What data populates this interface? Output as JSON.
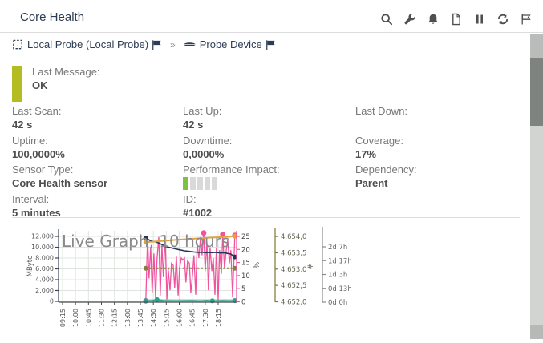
{
  "header": {
    "title": "Core Health",
    "icons": [
      "search-icon",
      "wrench-icon",
      "bell-icon",
      "document-icon",
      "pause-icon",
      "refresh-icon",
      "flag-icon"
    ]
  },
  "breadcrumb": {
    "separator": "»",
    "items": [
      {
        "icon": "probe-icon",
        "label": "Local Probe (Local Probe)",
        "flag": true
      },
      {
        "icon": "device-icon",
        "label": "Probe Device",
        "flag": true
      }
    ]
  },
  "status": {
    "label": "Last Message:",
    "value": "OK",
    "color": "#b3bc21"
  },
  "info_grid": [
    {
      "label": "Last Scan:",
      "value": "42 s"
    },
    {
      "label": "Last Up:",
      "value": "42 s"
    },
    {
      "label": "Last Down:",
      "value": ""
    },
    {
      "label": "Uptime:",
      "value": "100,0000%"
    },
    {
      "label": "Downtime:",
      "value": "0,0000%"
    },
    {
      "label": "Coverage:",
      "value": "17%"
    },
    {
      "label": "Sensor Type:",
      "value": "Core Health sensor"
    },
    {
      "label": "Performance Impact:",
      "value": "",
      "widget": "impact-bars",
      "impact_level": 1,
      "impact_total": 5
    },
    {
      "label": "Dependency:",
      "value": "Parent"
    },
    {
      "label": "Interval:",
      "value": "5 minutes"
    },
    {
      "label": "ID:",
      "value": "#1002"
    }
  ],
  "chart_data": {
    "type": "line",
    "title": "Live Graph, 10 hours",
    "x_ticks": [
      "09:15",
      "10:00",
      "10:45",
      "11:30",
      "12:15",
      "13:00",
      "13:45",
      "14:30",
      "15:15",
      "16:00",
      "16:45",
      "17:30",
      "18:15"
    ],
    "axes": [
      {
        "id": "mbyte",
        "label": "MByte",
        "side": "left",
        "color": "#3c4454",
        "ticks": [
          "0",
          "2.000",
          "4.000",
          "6.000",
          "8.000",
          "10.000",
          "12.000"
        ],
        "range": [
          0,
          12000
        ]
      },
      {
        "id": "pct",
        "label": "%",
        "side": "right1",
        "color": "#f0549e",
        "ticks": [
          "0",
          "5",
          "10",
          "15",
          "20",
          "25"
        ],
        "range": [
          0,
          25
        ]
      },
      {
        "id": "hash",
        "label": "#",
        "side": "right2",
        "color": "#7b7a33",
        "ticks": [
          "4.652,0",
          "4.652,5",
          "4.653,0",
          "4.653,5",
          "4.654,0"
        ],
        "range": [
          4652.0,
          4654.0
        ]
      },
      {
        "id": "age",
        "label": "",
        "side": "right3",
        "color": "#8a8a8a",
        "ticks": [
          "0d 0h",
          "0d 13h",
          "1d 3h",
          "1d 17h",
          "2d 7h"
        ]
      }
    ],
    "grid": true,
    "time_window_minutes": [
      0,
      603
    ],
    "series": [
      {
        "name": "band-minmax",
        "color": "rgba(47,158,141,0.28)",
        "width": 4,
        "style": "solid",
        "points": [
          [
            289,
            0.6
          ],
          [
            598,
            0.6
          ]
        ],
        "dots": []
      },
      {
        "name": "health-pct",
        "color": "#f0549e",
        "width": 1.3,
        "style": "solid",
        "points": [
          [
            289,
            0.5
          ],
          [
            295,
            25.3
          ],
          [
            300,
            9
          ],
          [
            306,
            21
          ],
          [
            311,
            3.5
          ],
          [
            317,
            18.5
          ],
          [
            323,
            1.2
          ],
          [
            328,
            16.5
          ],
          [
            334,
            24.8
          ],
          [
            339,
            2.5
          ],
          [
            345,
            21.5
          ],
          [
            350,
            9.5
          ],
          [
            356,
            25.4
          ],
          [
            362,
            1
          ],
          [
            367,
            12.5
          ],
          [
            373,
            4.5
          ],
          [
            378,
            14.8
          ],
          [
            384,
            14
          ],
          [
            389,
            5.5
          ],
          [
            395,
            17.5
          ],
          [
            401,
            2.5
          ],
          [
            406,
            12.8
          ],
          [
            412,
            16.8
          ],
          [
            417,
            16
          ],
          [
            423,
            16.8
          ],
          [
            428,
            7.5
          ],
          [
            434,
            15.8
          ],
          [
            440,
            14.8
          ],
          [
            445,
            3.5
          ],
          [
            451,
            10.2
          ],
          [
            456,
            17.8
          ],
          [
            462,
            2.8
          ],
          [
            467,
            22.5
          ],
          [
            473,
            16.8
          ],
          [
            479,
            24.8
          ],
          [
            484,
            17.8
          ],
          [
            490,
            26.3
          ],
          [
            495,
            11.8
          ],
          [
            501,
            22.8
          ],
          [
            506,
            4.5
          ],
          [
            512,
            20.8
          ],
          [
            518,
            11.8
          ],
          [
            523,
            16.8
          ],
          [
            529,
            2.8
          ],
          [
            534,
            20.8
          ],
          [
            540,
            0.8
          ],
          [
            545,
            19.8
          ],
          [
            551,
            10.8
          ],
          [
            556,
            25.8
          ],
          [
            562,
            12.8
          ],
          [
            568,
            19.8
          ],
          [
            573,
            23.8
          ],
          [
            579,
            14.8
          ],
          [
            584,
            19.8
          ],
          [
            590,
            1.8
          ],
          [
            598,
            25.4
          ]
        ],
        "dots": [
          [
            289,
            0.5
          ],
          [
            490,
            26.3
          ],
          [
            556,
            25.8
          ],
          [
            598,
            25.4
          ]
        ]
      },
      {
        "name": "memory-mbyte",
        "color": "#233457",
        "width": 1.6,
        "style": "solid",
        "points": [
          [
            289,
            24.4
          ],
          [
            306,
            23.3
          ],
          [
            323,
            22.9
          ],
          [
            334,
            22.5
          ],
          [
            345,
            21.9
          ],
          [
            356,
            21.2
          ],
          [
            367,
            20.9
          ],
          [
            378,
            20.6
          ],
          [
            389,
            20.3
          ],
          [
            406,
            19.9
          ],
          [
            423,
            19.5
          ],
          [
            440,
            19.3
          ],
          [
            456,
            19.1
          ],
          [
            473,
            18.9
          ],
          [
            484,
            19.0
          ],
          [
            495,
            18.8
          ],
          [
            506,
            18.9
          ],
          [
            518,
            18.8
          ],
          [
            529,
            18.9
          ],
          [
            540,
            18.8
          ],
          [
            551,
            18.7
          ],
          [
            562,
            18.8
          ],
          [
            573,
            18.5
          ],
          [
            584,
            18.3
          ],
          [
            592,
            17.6
          ],
          [
            598,
            17.2
          ]
        ],
        "dots": [
          [
            289,
            24.4
          ],
          [
            598,
            17.2
          ]
        ]
      },
      {
        "name": "age-days",
        "color": "#e2a33f",
        "width": 2,
        "style": "solid",
        "points": [
          [
            289,
            22.8
          ],
          [
            340,
            23.2
          ],
          [
            395,
            23.7
          ],
          [
            450,
            24.1
          ],
          [
            506,
            24.5
          ],
          [
            562,
            24.8
          ],
          [
            598,
            25.1
          ]
        ],
        "dots": [
          [
            289,
            22.8
          ],
          [
            598,
            25.1
          ]
        ]
      },
      {
        "name": "handle-count",
        "color": "#81803a",
        "width": 2,
        "style": "dotted",
        "points": [
          [
            289,
            12.9
          ],
          [
            598,
            12.9
          ]
        ],
        "dots": [
          [
            289,
            12.9
          ],
          [
            598,
            12.9
          ]
        ]
      },
      {
        "name": "low-channel",
        "color": "#2f9e8d",
        "width": 1.5,
        "style": "solid",
        "points": [
          [
            289,
            0.55
          ],
          [
            311,
            0.6
          ],
          [
            328,
            0.95
          ],
          [
            350,
            0.6
          ],
          [
            395,
            0.55
          ],
          [
            450,
            0.6
          ],
          [
            478,
            0.5
          ],
          [
            500,
            0.65
          ],
          [
            520,
            0.5
          ],
          [
            556,
            0.6
          ],
          [
            580,
            0.55
          ],
          [
            598,
            0.6
          ]
        ],
        "dots": [
          [
            289,
            0.55
          ],
          [
            328,
            0.95
          ],
          [
            520,
            0.5
          ],
          [
            598,
            0.6
          ]
        ]
      }
    ]
  }
}
